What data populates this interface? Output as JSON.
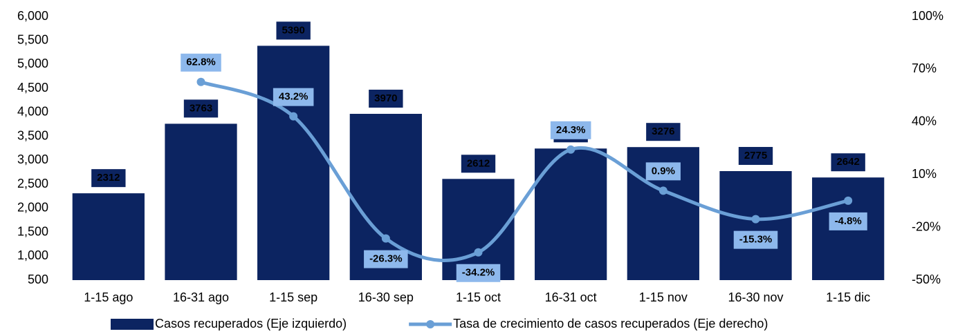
{
  "chart_data": {
    "type": "combo",
    "categories": [
      "1-15 ago",
      "16-31 ago",
      "1-15 sep",
      "16-30 sep",
      "1-15 oct",
      "16-31 oct",
      "1-15 nov",
      "16-30 nov",
      "1-15 dic"
    ],
    "series": [
      {
        "name": "Casos recuperados (Eje izquierdo)",
        "type": "bar",
        "color": "#0c2461",
        "values": [
          2312,
          3763,
          5390,
          3970,
          2612,
          3246,
          3276,
          2775,
          2642
        ]
      },
      {
        "name": "Tasa de crecimiento de casos recuperados (Eje derecho)",
        "type": "line",
        "axis": "y2",
        "color": "#6a9fd6",
        "values": [
          null,
          62.8,
          43.2,
          -26.3,
          -34.2,
          24.3,
          0.9,
          -15.3,
          -4.8
        ],
        "value_labels": [
          null,
          "62.8%",
          "43.2%",
          "-26.3%",
          "-34.2%",
          "24.3%",
          "0.9%",
          "-15.3%",
          "-4.8%"
        ]
      }
    ],
    "ylim": [
      500,
      6000
    ],
    "yticks": [
      500,
      {
        "value": 1000,
        "label": "1,000"
      },
      {
        "value": 1500,
        "label": "1,500"
      },
      {
        "value": 2000,
        "label": "2,000"
      },
      {
        "value": 2500,
        "label": "2,500"
      },
      {
        "value": 3000,
        "label": "3,000"
      },
      {
        "value": 3500,
        "label": "3,500"
      },
      {
        "value": 4000,
        "label": "4,000"
      },
      {
        "value": 4500,
        "label": "4,500"
      },
      {
        "value": 5000,
        "label": "5,000"
      },
      {
        "value": 5500,
        "label": "5,500"
      },
      {
        "value": 6000,
        "label": "6,000"
      }
    ],
    "y2lim": [
      -50,
      100
    ],
    "y2ticks": [
      {
        "value": -50,
        "label": "-50%"
      },
      {
        "value": -20,
        "label": "-20%"
      },
      {
        "value": 10,
        "label": "10%"
      },
      {
        "value": 40,
        "label": "40%"
      },
      {
        "value": 70,
        "label": "70%"
      },
      {
        "value": 100,
        "label": "100%"
      }
    ],
    "legend": "bottom"
  }
}
